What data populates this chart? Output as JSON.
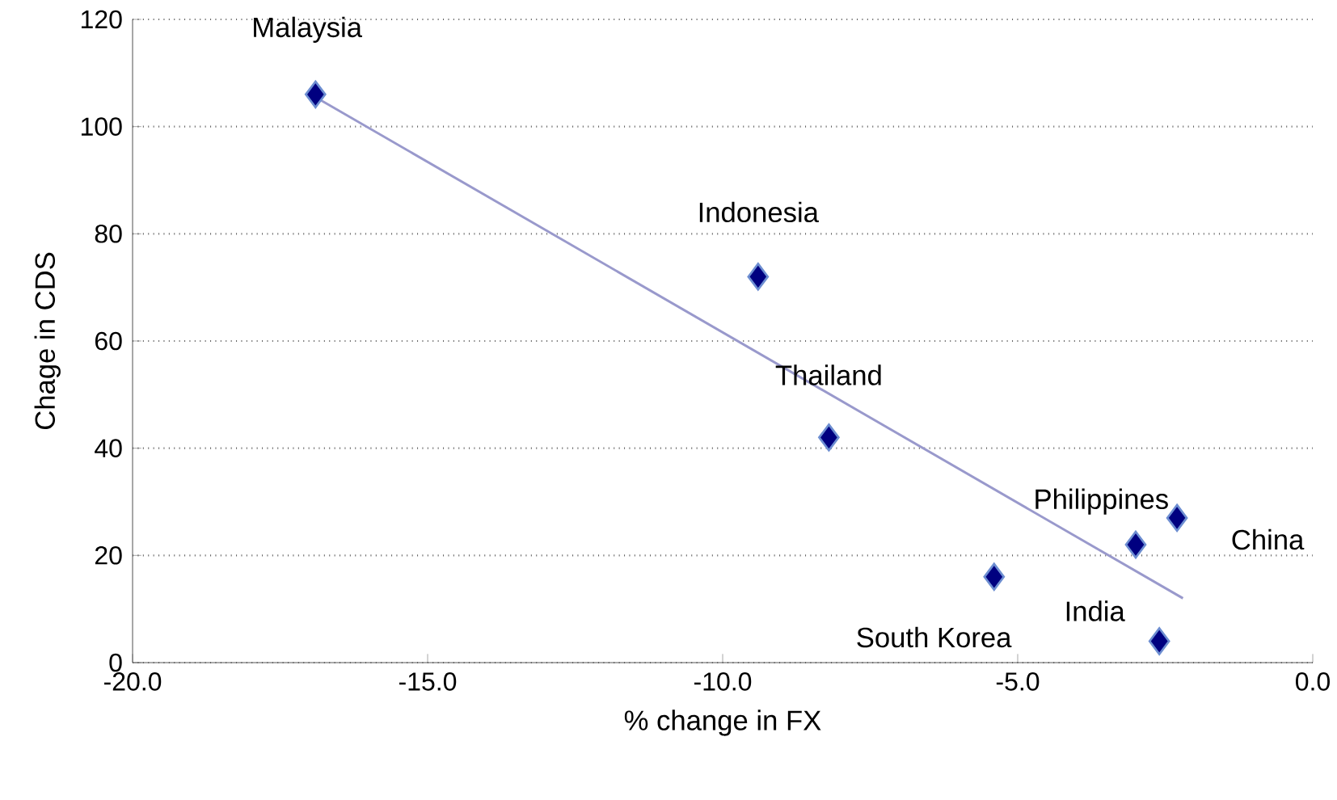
{
  "chart_data": {
    "type": "scatter",
    "xlabel": "% change in FX",
    "ylabel": "Chage in CDS",
    "series": [
      {
        "color": "#000080",
        "marker": "diamond",
        "x": [
          -16.9,
          -9.4,
          -8.2,
          -5.4,
          -3.0,
          -2.3,
          -2.6
        ],
        "values": [
          106,
          72,
          42,
          16,
          22,
          27,
          4
        ]
      },
      {
        "type": "line",
        "marker": "none",
        "color": "#9999cc",
        "x": [
          -16.9,
          -2.2
        ],
        "values": [
          105.5,
          12
        ]
      }
    ],
    "annotations": [
      {
        "text": "Malaysia",
        "x": -16.9,
        "y": 106
      },
      {
        "text": "Indonesia",
        "x": -9.4,
        "y": 72
      },
      {
        "text": "Thailand",
        "x": -8.2,
        "y": 42
      },
      {
        "text": "South Korea",
        "x": -5.4,
        "y": 16
      },
      {
        "text": "Philippines",
        "x": -3.0,
        "y": 22
      },
      {
        "text": "China",
        "x": -2.3,
        "y": 27
      },
      {
        "text": "India",
        "x": -2.6,
        "y": 4
      }
    ],
    "xlim": [
      -20,
      0
    ],
    "ylim": [
      0,
      120
    ],
    "xticks": [
      {
        "value": -20,
        "label": "-20.0"
      },
      {
        "value": -15,
        "label": "-15.0"
      },
      {
        "value": -10,
        "label": "-10.0"
      },
      {
        "value": -5,
        "label": "-5.0"
      },
      {
        "value": 0,
        "label": "0.0"
      }
    ],
    "yticks": [
      0,
      20,
      40,
      60,
      80,
      100,
      120
    ],
    "grid": "y"
  }
}
